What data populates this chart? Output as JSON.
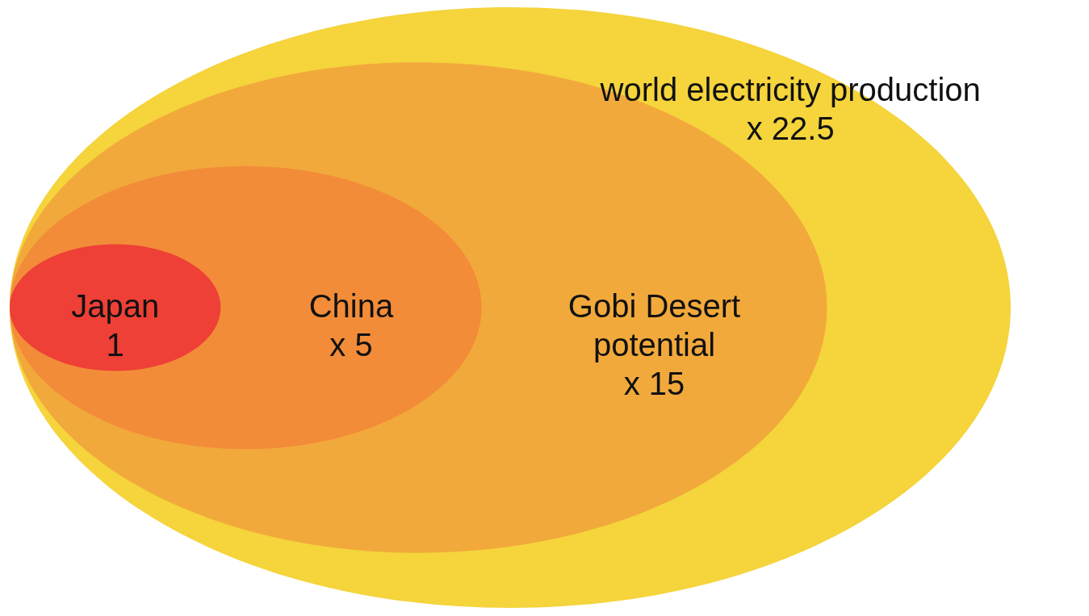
{
  "chart_data": {
    "type": "other",
    "categories": [
      "Japan",
      "China",
      "Gobi Desert potential",
      "world electricity production"
    ],
    "values": [
      1,
      5,
      15,
      22.5
    ],
    "value_labels": [
      "1",
      "x 5",
      "x 15",
      "x 22.5"
    ],
    "colors": [
      "#ee4036",
      "#f28c38",
      "#f2a93b",
      "#f5d43c"
    ]
  }
}
